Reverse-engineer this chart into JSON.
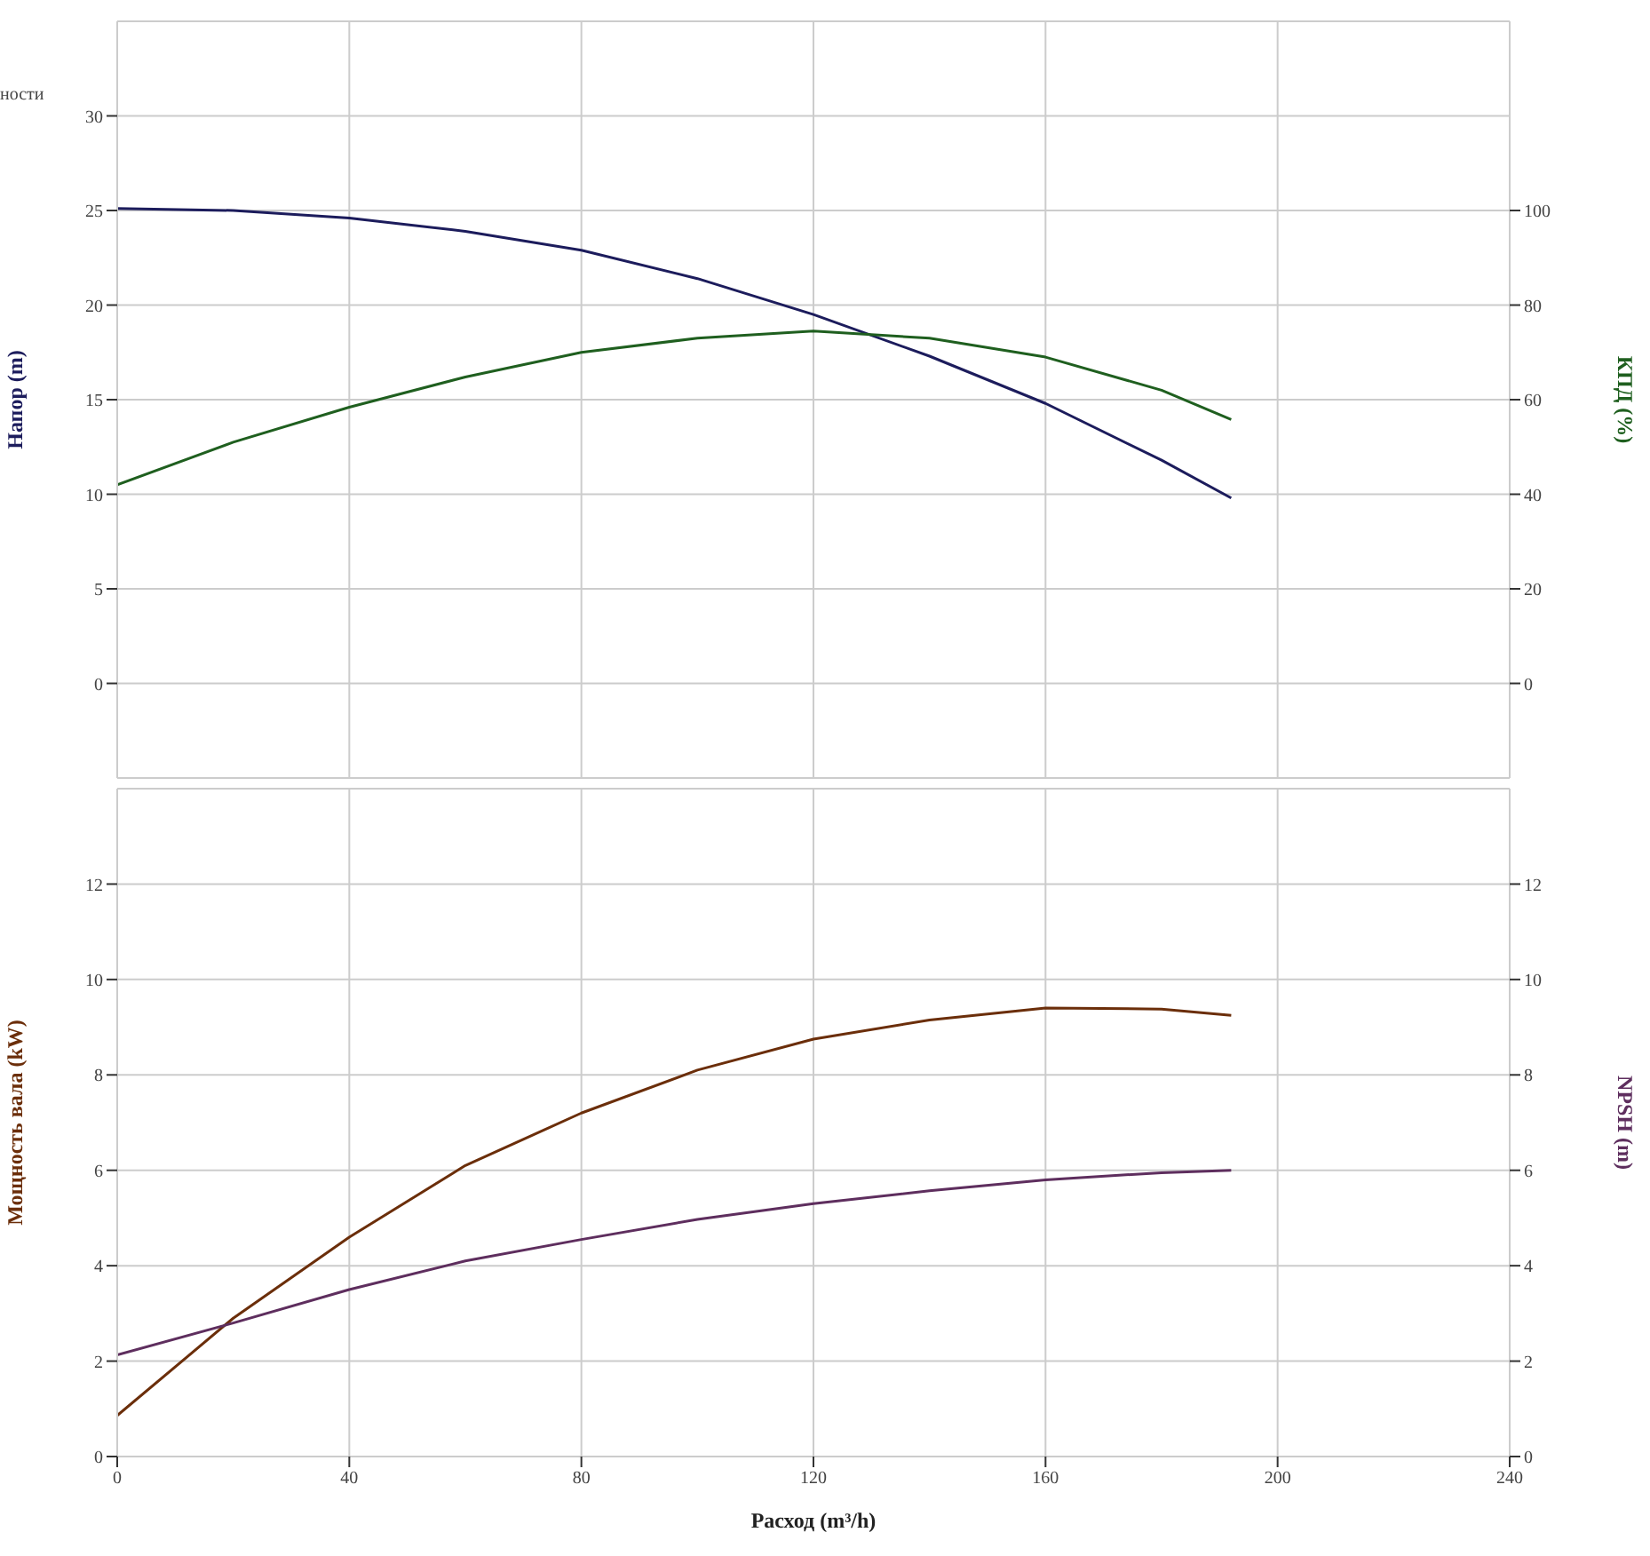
{
  "chart_data": [
    {
      "type": "line",
      "ylabel": "Напор (m)",
      "y2label": "КПД (%)",
      "annotations": [
        "ности"
      ],
      "x": [
        0,
        20,
        40,
        60,
        80,
        100,
        120,
        140,
        160,
        180,
        192
      ],
      "xlim": [
        0,
        240
      ],
      "xticks": [
        0,
        40,
        80,
        120,
        160,
        200,
        240
      ],
      "ylim": [
        -5,
        35
      ],
      "yticks": [
        0,
        5,
        10,
        15,
        20,
        25,
        30
      ],
      "y2lim": [
        -20,
        140
      ],
      "y2ticks": [
        0,
        20,
        40,
        60,
        80,
        100
      ],
      "tick_labels": "y",
      "grid": true,
      "marker": "none",
      "line_style": "solid",
      "legend": false,
      "series": [
        {
          "color": "#1c1c5c",
          "values": [
            25.1,
            25.0,
            24.6,
            23.9,
            22.9,
            21.4,
            19.5,
            17.3,
            14.8,
            11.8,
            9.8
          ]
        },
        {
          "color": "#1f5f1f",
          "axis": "y2",
          "values": [
            42,
            51,
            58.4,
            64.8,
            70,
            73,
            74.5,
            73,
            69,
            62,
            55.8
          ]
        }
      ]
    },
    {
      "type": "line",
      "xlabel": "Расход (m³/h)",
      "ylabel": "Мощность вала (kW)",
      "y2label": "NPSH (m)",
      "x": [
        0,
        20,
        40,
        60,
        80,
        100,
        120,
        140,
        160,
        180,
        192
      ],
      "xlim": [
        0,
        240
      ],
      "xticks": [
        0,
        40,
        80,
        120,
        160,
        200,
        240
      ],
      "ylim": [
        0,
        14
      ],
      "yticks": [
        0,
        2,
        4,
        6,
        8,
        10,
        12
      ],
      "y2lim": [
        0,
        14
      ],
      "y2ticks": [
        0,
        2,
        4,
        6,
        8,
        10,
        12
      ],
      "grid": true,
      "marker": "none",
      "line_style": "solid",
      "legend": false,
      "series": [
        {
          "color": "#6b2e0a",
          "values": [
            0.86,
            2.9,
            4.6,
            6.1,
            7.2,
            8.1,
            8.75,
            9.15,
            9.4,
            9.38,
            9.25
          ]
        },
        {
          "color": "#5e2e5e",
          "axis": "y2",
          "values": [
            2.13,
            2.8,
            3.5,
            4.1,
            4.55,
            4.97,
            5.3,
            5.57,
            5.8,
            5.95,
            6.0
          ]
        }
      ]
    }
  ]
}
